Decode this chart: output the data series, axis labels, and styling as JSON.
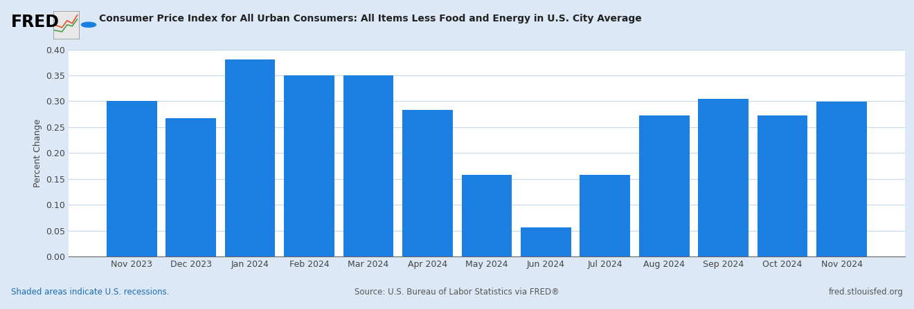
{
  "categories": [
    "Nov 2023",
    "Dec 2023",
    "Jan 2024",
    "Feb 2024",
    "Mar 2024",
    "Apr 2024",
    "May 2024",
    "Jun 2024",
    "Jul 2024",
    "Aug 2024",
    "Sep 2024",
    "Oct 2024",
    "Nov 2024"
  ],
  "values": [
    0.3,
    0.267,
    0.381,
    0.35,
    0.35,
    0.283,
    0.157,
    0.056,
    0.158,
    0.273,
    0.304,
    0.272,
    0.299
  ],
  "bar_color": "#1a7fe0",
  "title": "Consumer Price Index for All Urban Consumers: All Items Less Food and Energy in U.S. City Average",
  "ylabel": "Percent Change",
  "ylim": [
    0.0,
    0.4
  ],
  "yticks": [
    0.0,
    0.05,
    0.1,
    0.15,
    0.2,
    0.25,
    0.3,
    0.35,
    0.4
  ],
  "background_color": "#dce8f5",
  "plot_bg_color": "#ffffff",
  "header_bg_color": "#dce8f5",
  "footer_left": "Shaded areas indicate U.S. recessions.",
  "footer_center": "Source: U.S. Bureau of Labor Statistics via FRED®",
  "footer_right": "fred.stlouisfed.org",
  "fred_text": "FRED",
  "legend_dot_color": "#1a7fe0",
  "grid_color": "#c8d8e8",
  "title_color": "#222222",
  "footer_left_color": "#1a6bb5",
  "footer_text_color": "#555555",
  "bar_width": 0.85,
  "tick_fontsize": 9,
  "ylabel_fontsize": 9,
  "title_fontsize": 10
}
